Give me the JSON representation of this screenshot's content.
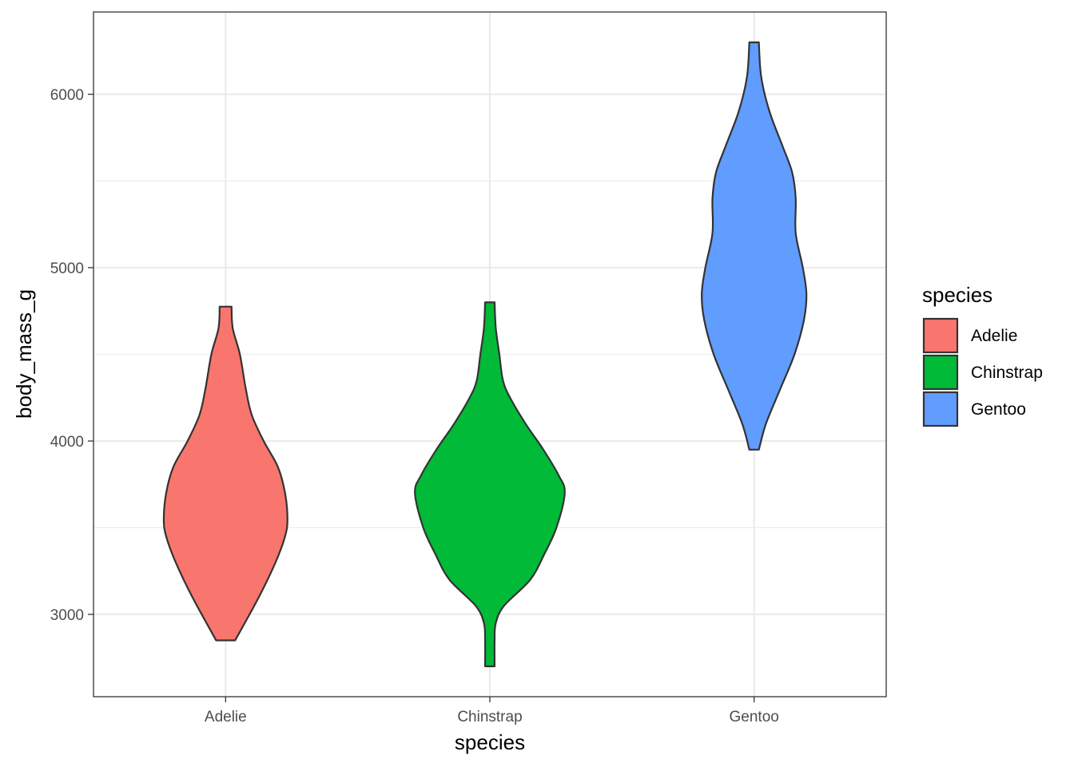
{
  "chart_data": {
    "type": "violin",
    "title": "",
    "xlabel": "species",
    "ylabel": "body_mass_g",
    "ylim": [
      2525,
      6475
    ],
    "yticks": [
      3000,
      4000,
      5000,
      6000
    ],
    "ytick_labels": [
      "3000",
      "4000",
      "5000",
      "6000"
    ],
    "y_minor_ticks": [
      3500,
      4500,
      5500
    ],
    "categories": [
      "Adelie",
      "Chinstrap",
      "Gentoo"
    ],
    "grid": true,
    "legend": {
      "title": "species",
      "position": "right",
      "entries": [
        "Adelie",
        "Chinstrap",
        "Gentoo"
      ]
    },
    "series": [
      {
        "name": "Adelie",
        "color": "#F8766D",
        "min": 2850,
        "max": 4775,
        "density": [
          [
            2850,
            0.08
          ],
          [
            3100,
            0.28
          ],
          [
            3300,
            0.42
          ],
          [
            3450,
            0.5
          ],
          [
            3550,
            0.52
          ],
          [
            3700,
            0.5
          ],
          [
            3850,
            0.44
          ],
          [
            4000,
            0.32
          ],
          [
            4150,
            0.22
          ],
          [
            4300,
            0.17
          ],
          [
            4500,
            0.12
          ],
          [
            4650,
            0.06
          ],
          [
            4775,
            0.05
          ]
        ]
      },
      {
        "name": "Chinstrap",
        "color": "#00BA38",
        "min": 2700,
        "max": 4800,
        "density": [
          [
            2700,
            0.04
          ],
          [
            2850,
            0.04
          ],
          [
            2950,
            0.05
          ],
          [
            3050,
            0.12
          ],
          [
            3200,
            0.34
          ],
          [
            3350,
            0.46
          ],
          [
            3500,
            0.56
          ],
          [
            3700,
            0.63
          ],
          [
            3800,
            0.58
          ],
          [
            3950,
            0.45
          ],
          [
            4100,
            0.3
          ],
          [
            4250,
            0.17
          ],
          [
            4350,
            0.11
          ],
          [
            4500,
            0.08
          ],
          [
            4650,
            0.05
          ],
          [
            4800,
            0.04
          ]
        ]
      },
      {
        "name": "Gentoo",
        "color": "#619CFF",
        "min": 3950,
        "max": 6300,
        "density": [
          [
            3950,
            0.04
          ],
          [
            4100,
            0.1
          ],
          [
            4300,
            0.22
          ],
          [
            4500,
            0.34
          ],
          [
            4700,
            0.42
          ],
          [
            4850,
            0.44
          ],
          [
            5000,
            0.41
          ],
          [
            5200,
            0.35
          ],
          [
            5400,
            0.35
          ],
          [
            5550,
            0.32
          ],
          [
            5700,
            0.24
          ],
          [
            5900,
            0.13
          ],
          [
            6100,
            0.06
          ],
          [
            6300,
            0.04
          ]
        ]
      }
    ]
  }
}
